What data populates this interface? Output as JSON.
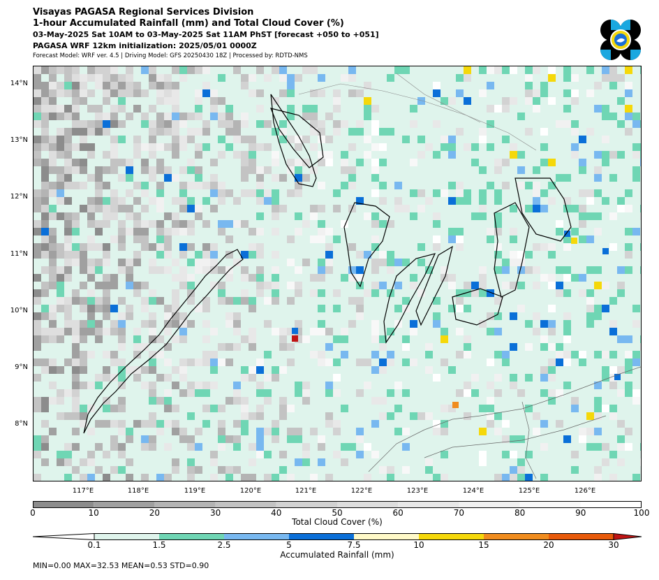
{
  "header": {
    "division": "Visayas PAGASA Regional Services Division",
    "product": "1-hour Accumulated Rainfall (mm) and Total Cloud Cover (%)",
    "valid_time": "03-May-2025 Sat 10AM to 03-May-2025 Sat 11AM PhST [forecast +050 to +051]",
    "model_init": "PAGASA WRF 12km initialization: 2025/05/01 0000Z",
    "model_info": "Forecast Model: WRF ver. 4.5 | Driving Model: GFS 20250430 18Z | Processed by: RDTD-NMS"
  },
  "logo_icon": "pagasa-logo-icon",
  "map": {
    "lat_labels": [
      "14°N",
      "13°N",
      "12°N",
      "11°N",
      "10°N",
      "9°N",
      "8°N"
    ],
    "lon_labels": [
      "117°E",
      "118°E",
      "119°E",
      "120°E",
      "121°E",
      "122°E",
      "123°E",
      "124°E",
      "125°E",
      "126°E"
    ]
  },
  "cloud_colorbar": {
    "label": "Total Cloud Cover (%)",
    "ticks": [
      "0",
      "10",
      "20",
      "30",
      "40",
      "50",
      "60",
      "70",
      "80",
      "90",
      "100"
    ],
    "colors": [
      "#8c8c8c",
      "#a0a0a0",
      "#b4b4b4",
      "#c3c3c3",
      "#d2d2d2",
      "#dedede",
      "#e8e8e8",
      "#f1f1f1",
      "#f8f8f8",
      "#ffffff"
    ]
  },
  "rain_colorbar": {
    "label": "Accumulated Rainfall (mm)",
    "ticks": [
      "0.1",
      "1.5",
      "2.5",
      "5",
      "7.5",
      "10",
      "15",
      "20",
      "30"
    ],
    "under_color": "#ffffff",
    "colors": [
      "#dff4ec",
      "#6fd6b4",
      "#78b8f0",
      "#0a6fd8",
      "#fff9c8",
      "#f5d80a",
      "#f08c1e",
      "#e85a0a"
    ],
    "over_color": "#c01414"
  },
  "stats": "MIN=0.00   MAX=32.53   MEAN=0.53   STD=0.90"
}
